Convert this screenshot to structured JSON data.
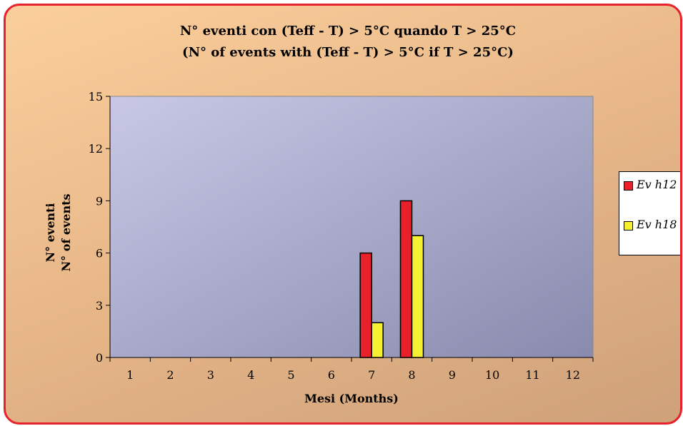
{
  "colors": {
    "frame_border": "#e8222a",
    "background_top": "#fbcf9c",
    "plot_area_light": "#c8c8e6",
    "plot_area_dark": "#8a8aae"
  },
  "chart_data": {
    "type": "bar",
    "title": "N° eventi con (Teff - T) > 5°C quando T > 25°C",
    "subtitle": "(N° of events with (Teff - T) > 5°C if T > 25°C)",
    "xlabel": "Mesi (Months)",
    "ylabel_line1": "N° eventi",
    "ylabel_line2": "N° of events",
    "categories": [
      "1",
      "2",
      "3",
      "4",
      "5",
      "6",
      "7",
      "8",
      "9",
      "10",
      "11",
      "12"
    ],
    "yticks": [
      0,
      3,
      6,
      9,
      12,
      15
    ],
    "ylim": [
      0,
      15
    ],
    "grid": false,
    "legend_position": "right",
    "series": [
      {
        "name": "Ev h12",
        "color": "#e8202a",
        "values": [
          0,
          0,
          0,
          0,
          0,
          0,
          6,
          9,
          0,
          0,
          0,
          0
        ]
      },
      {
        "name": "Ev h18",
        "color": "#f5f032",
        "values": [
          0,
          0,
          0,
          0,
          0,
          0,
          2,
          7,
          0,
          0,
          0,
          0
        ]
      }
    ]
  }
}
